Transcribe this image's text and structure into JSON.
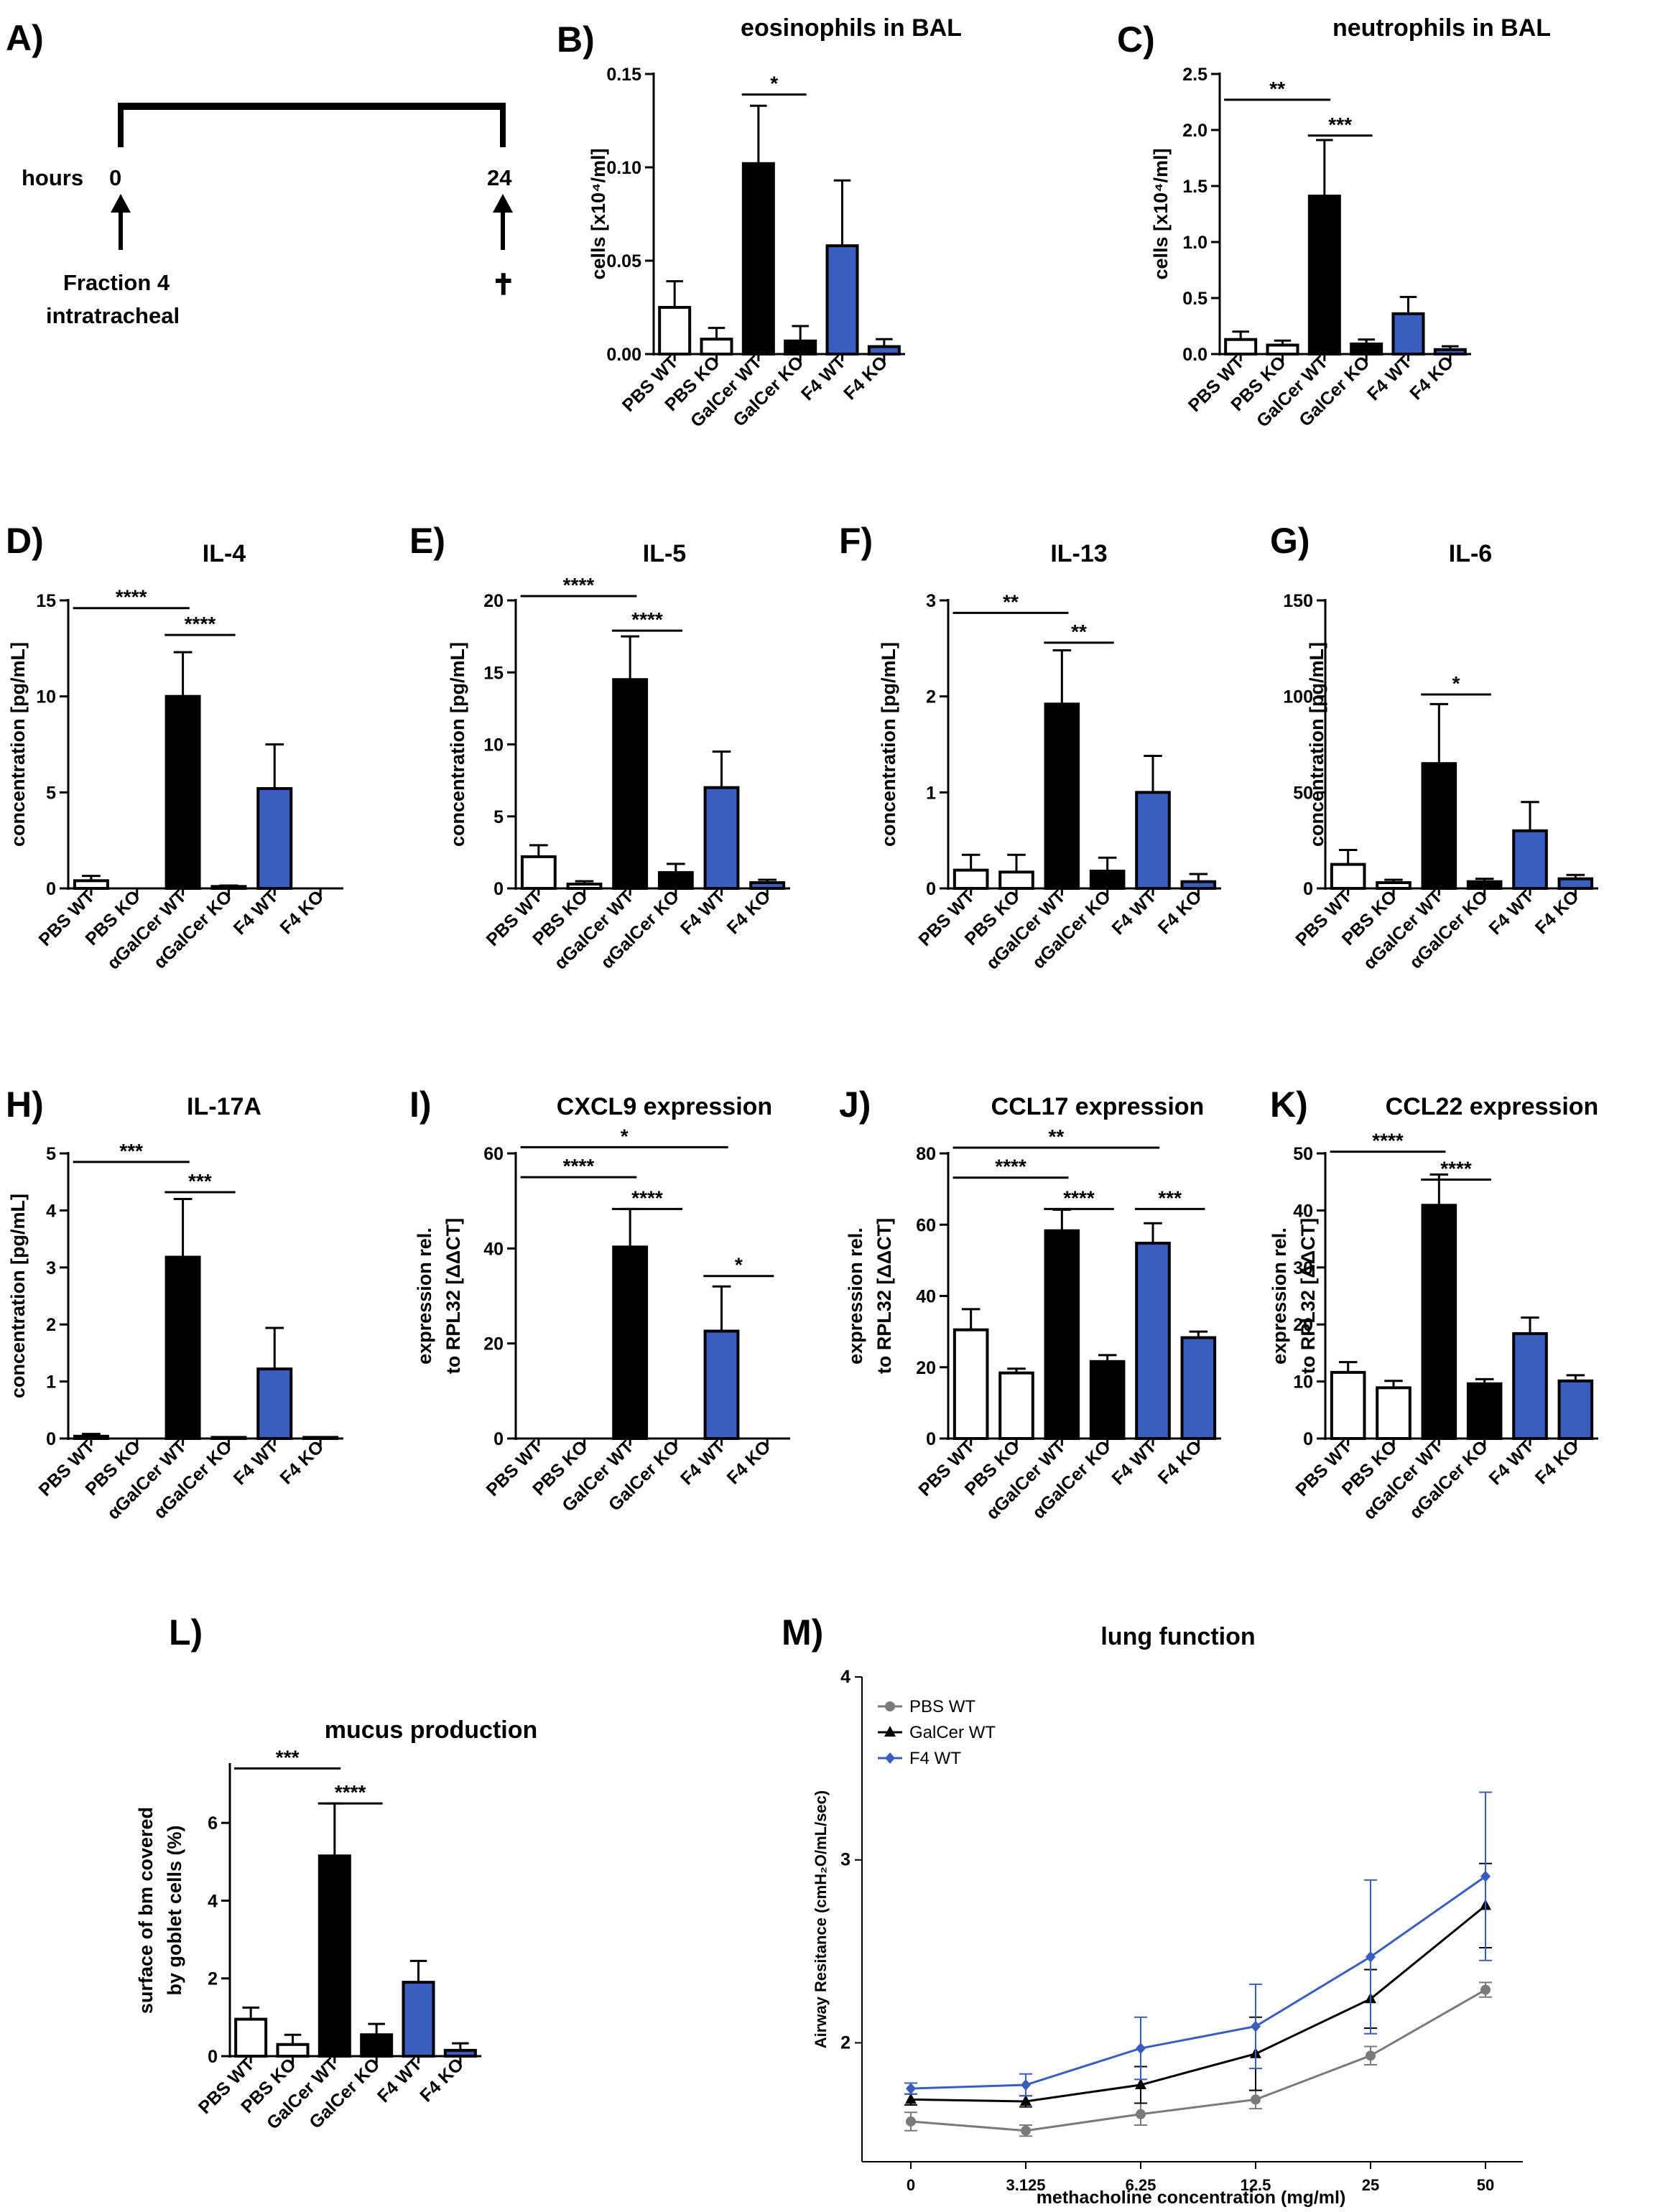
{
  "colors": {
    "wt_black": "#000000",
    "f4_blue": "#3a5ebd",
    "pbs_gray": "#7a7a7a"
  },
  "timeline": {
    "label": "A)",
    "hours_label": "hours",
    "start": "0",
    "end": "24",
    "treatment": [
      "Fraction 4",
      "intratracheal"
    ],
    "endpoint_symbol": "✝"
  },
  "chart_data": [
    {
      "id": "B",
      "label": "B)",
      "type": "bar",
      "title": "eosinophils in BAL",
      "ylabel": "cells [x10⁴/ml]",
      "yticks": [
        "0.00",
        "0.05",
        "0.10",
        "0.15"
      ],
      "ylim": [
        0,
        0.15
      ],
      "categories": [
        "PBS WT",
        "PBS KO",
        "GalCer WT",
        "GalCer KO",
        "F4 WT",
        "F4 KO"
      ],
      "values": [
        0.025,
        0.008,
        0.102,
        0.007,
        0.058,
        0.004
      ],
      "errors": [
        0.014,
        0.006,
        0.031,
        0.008,
        0.035,
        0.004
      ],
      "fills": [
        "white",
        "white",
        "black",
        "black",
        "blue",
        "blue"
      ],
      "significance": [
        {
          "from": 2,
          "to": 3,
          "label": "*",
          "y": 0.139
        }
      ]
    },
    {
      "id": "C",
      "label": "C)",
      "type": "bar",
      "title": "neutrophils in BAL",
      "ylabel": "cells [x10⁴/ml]",
      "yticks": [
        "0.0",
        "0.5",
        "1.0",
        "1.5",
        "2.0",
        "2.5"
      ],
      "ylim": [
        0,
        2.5
      ],
      "categories": [
        "PBS WT",
        "PBS KO",
        "GalCer WT",
        "GalCer KO",
        "F4 WT",
        "F4 KO"
      ],
      "values": [
        0.13,
        0.08,
        1.41,
        0.09,
        0.36,
        0.04
      ],
      "errors": [
        0.07,
        0.04,
        0.5,
        0.04,
        0.15,
        0.03
      ],
      "fills": [
        "white",
        "white",
        "black",
        "black",
        "blue",
        "blue"
      ],
      "significance": [
        {
          "from": 0,
          "to": 2,
          "label": "**",
          "y": 2.27
        },
        {
          "from": 2,
          "to": 3,
          "label": "***",
          "y": 1.95
        }
      ]
    },
    {
      "id": "D",
      "label": "D)",
      "type": "bar",
      "title": "IL-4",
      "ylabel": "concentration [pg/mL]",
      "yticks": [
        "0",
        "5",
        "10",
        "15"
      ],
      "ylim": [
        0,
        15
      ],
      "categories": [
        "PBS WT",
        "PBS KO",
        "αGalCer WT",
        "αGalCer KO",
        "F4 WT",
        "F4 KO"
      ],
      "values": [
        0.4,
        0.0,
        10.0,
        0.1,
        5.2,
        0.0
      ],
      "errors": [
        0.25,
        0.0,
        2.3,
        0.05,
        2.3,
        0.0
      ],
      "fills": [
        "white",
        "white",
        "black",
        "black",
        "blue",
        "blue"
      ],
      "significance": [
        {
          "from": 0,
          "to": 2,
          "label": "****",
          "y": 14.6
        },
        {
          "from": 2,
          "to": 3,
          "label": "****",
          "y": 13.2
        }
      ]
    },
    {
      "id": "E",
      "label": "E)",
      "type": "bar",
      "title": "IL-5",
      "ylabel": "concentration [pg/mL]",
      "yticks": [
        "0",
        "5",
        "10",
        "15",
        "20"
      ],
      "ylim": [
        0,
        20
      ],
      "categories": [
        "PBS WT",
        "PBS KO",
        "αGalCer WT",
        "αGalCer KO",
        "F4 WT",
        "F4 KO"
      ],
      "values": [
        2.2,
        0.3,
        14.5,
        1.1,
        7.0,
        0.4
      ],
      "errors": [
        0.8,
        0.2,
        3.0,
        0.6,
        2.5,
        0.2
      ],
      "fills": [
        "white",
        "white",
        "black",
        "black",
        "blue",
        "blue"
      ],
      "significance": [
        {
          "from": 0,
          "to": 2,
          "label": "****",
          "y": 20.3
        },
        {
          "from": 2,
          "to": 3,
          "label": "****",
          "y": 17.9
        }
      ]
    },
    {
      "id": "F",
      "label": "F)",
      "type": "bar",
      "title": "IL-13",
      "ylabel": "concentration [pg/mL]",
      "yticks": [
        "0",
        "1",
        "2",
        "3"
      ],
      "ylim": [
        0,
        3
      ],
      "categories": [
        "PBS WT",
        "PBS KO",
        "αGalCer WT",
        "αGalCer KO",
        "F4 WT",
        "F4 KO"
      ],
      "values": [
        0.19,
        0.17,
        1.92,
        0.18,
        1.0,
        0.07
      ],
      "errors": [
        0.16,
        0.18,
        0.56,
        0.14,
        0.38,
        0.08
      ],
      "fills": [
        "white",
        "white",
        "black",
        "black",
        "blue",
        "blue"
      ],
      "significance": [
        {
          "from": 0,
          "to": 2,
          "label": "**",
          "y": 2.87
        },
        {
          "from": 2,
          "to": 3,
          "label": "**",
          "y": 2.56
        }
      ]
    },
    {
      "id": "G",
      "label": "G)",
      "type": "bar",
      "title": "IL-6",
      "ylabel": "concentration [pg/mL]",
      "yticks": [
        "0",
        "50",
        "100",
        "150"
      ],
      "ylim": [
        0,
        150
      ],
      "categories": [
        "PBS WT",
        "PBS KO",
        "αGalCer WT",
        "αGalCer KO",
        "F4 WT",
        "F4 KO"
      ],
      "values": [
        12.5,
        3.0,
        65.0,
        3.5,
        30.0,
        5.0
      ],
      "errors": [
        7.5,
        1.5,
        31.0,
        1.5,
        15.0,
        2.0
      ],
      "fills": [
        "white",
        "white",
        "black",
        "black",
        "blue",
        "blue"
      ],
      "significance": [
        {
          "from": 2,
          "to": 3,
          "label": "*",
          "y": 101
        }
      ]
    },
    {
      "id": "H",
      "label": "H)",
      "type": "bar",
      "title": "IL-17A",
      "ylabel": "concentration [pg/mL]",
      "yticks": [
        "0",
        "1",
        "2",
        "3",
        "4",
        "5"
      ],
      "ylim": [
        0,
        5
      ],
      "categories": [
        "PBS WT",
        "PBS KO",
        "αGalCer WT",
        "αGalCer KO",
        "F4 WT",
        "F4 KO"
      ],
      "values": [
        0.04,
        0.0,
        3.18,
        0.02,
        1.22,
        0.02
      ],
      "errors": [
        0.04,
        0.0,
        1.02,
        0.0,
        0.72,
        0.0
      ],
      "fills": [
        "white",
        "white",
        "black",
        "black",
        "blue",
        "blue"
      ],
      "significance": [
        {
          "from": 0,
          "to": 2,
          "label": "***",
          "y": 4.85
        },
        {
          "from": 2,
          "to": 3,
          "label": "***",
          "y": 4.32
        }
      ]
    },
    {
      "id": "I",
      "label": "I)",
      "type": "bar",
      "title": "CXCL9 expression",
      "ylabel": [
        "expression rel.",
        "to RPL32 [ΔΔCT]"
      ],
      "yticks": [
        "0",
        "20",
        "40",
        "60"
      ],
      "ylim": [
        0,
        60
      ],
      "categories": [
        "PBS WT",
        "PBS KO",
        "GalCer WT",
        "GalCer KO",
        "F4 WT",
        "F4 KO"
      ],
      "values": [
        0.0,
        0.0,
        40.3,
        0.0,
        22.6,
        0.0
      ],
      "errors": [
        0.0,
        0.0,
        8.0,
        0.0,
        9.4,
        0.0
      ],
      "fills": [
        "white",
        "white",
        "black",
        "black",
        "blue",
        "blue"
      ],
      "significance": [
        {
          "from": 0,
          "to": 4,
          "label": "*",
          "y": 61.3
        },
        {
          "from": 0,
          "to": 2,
          "label": "****",
          "y": 55.0
        },
        {
          "from": 2,
          "to": 3,
          "label": "****",
          "y": 48.3
        },
        {
          "from": 4,
          "to": 5,
          "label": "*",
          "y": 34.2
        }
      ]
    },
    {
      "id": "J",
      "label": "J)",
      "type": "bar",
      "title": "CCL17 expression",
      "ylabel": [
        "expression rel.",
        "to RPL32 [ΔΔCT]"
      ],
      "yticks": [
        "0",
        "20",
        "40",
        "60",
        "80"
      ],
      "ylim": [
        0,
        80
      ],
      "categories": [
        "PBS WT",
        "PBS KO",
        "αGalCer WT",
        "αGalCer KO",
        "F4 WT",
        "F4 KO"
      ],
      "values": [
        30.5,
        18.4,
        58.3,
        21.6,
        54.8,
        28.3
      ],
      "errors": [
        5.8,
        1.2,
        5.9,
        1.8,
        5.6,
        1.7
      ],
      "fills": [
        "white",
        "white",
        "black",
        "black",
        "blue",
        "blue"
      ],
      "significance": [
        {
          "from": 0,
          "to": 4,
          "label": "**",
          "y": 81.6
        },
        {
          "from": 0,
          "to": 2,
          "label": "****",
          "y": 73.2
        },
        {
          "from": 2,
          "to": 3,
          "label": "****",
          "y": 64.4
        },
        {
          "from": 4,
          "to": 5,
          "label": "***",
          "y": 64.4
        }
      ]
    },
    {
      "id": "K",
      "label": "K)",
      "type": "bar",
      "title": "CCL22 expression",
      "ylabel": [
        "expression rel.",
        "to RPL32 [ΔΔCT]"
      ],
      "yticks": [
        "0",
        "10",
        "20",
        "30",
        "40",
        "50"
      ],
      "ylim": [
        0,
        50
      ],
      "categories": [
        "PBS WT",
        "PBS KO",
        "αGalCer WT",
        "αGalCer KO",
        "F4 WT",
        "F4 KO"
      ],
      "values": [
        11.6,
        8.9,
        40.9,
        9.6,
        18.4,
        10.1
      ],
      "errors": [
        1.8,
        1.2,
        5.4,
        0.8,
        2.8,
        1.0
      ],
      "fills": [
        "white",
        "white",
        "black",
        "black",
        "blue",
        "blue"
      ],
      "significance": [
        {
          "from": 0,
          "to": 2,
          "label": "****",
          "y": 50.3
        },
        {
          "from": 2,
          "to": 3,
          "label": "****",
          "y": 45.4
        }
      ]
    },
    {
      "id": "L",
      "label": "L)",
      "type": "bar",
      "title": "mucus production",
      "ylabel": [
        "surface of bm covered",
        "by goblet cells (%)"
      ],
      "yticks": [
        "0",
        "2",
        "4",
        "6"
      ],
      "ylim": [
        0,
        7.5
      ],
      "categories": [
        "PBS WT",
        "PBS KO",
        "GalCer WT",
        "GalCer KO",
        "F4 WT",
        "F4 KO"
      ],
      "values": [
        0.95,
        0.3,
        5.15,
        0.55,
        1.9,
        0.15
      ],
      "errors": [
        0.3,
        0.25,
        1.35,
        0.28,
        0.55,
        0.18
      ],
      "fills": [
        "white",
        "white",
        "black",
        "black",
        "blue",
        "blue"
      ],
      "significance": [
        {
          "from": 0,
          "to": 2,
          "label": "***",
          "y": 7.4
        },
        {
          "from": 2,
          "to": 3,
          "label": "****",
          "y": 6.5
        }
      ]
    },
    {
      "id": "M",
      "label": "M)",
      "type": "line",
      "title": "lung function",
      "xlabel": "methacholine concentration (mg/ml)",
      "ylabel": "Airway Resitance (cmH₂O/mL/sec)",
      "x": [
        "0",
        "3.125",
        "6.25",
        "12.5",
        "25",
        "50"
      ],
      "yticks": [
        "2",
        "3",
        "4"
      ],
      "ylim": [
        1.35,
        4.0
      ],
      "series": [
        {
          "name": "PBS WT",
          "color": "#7a7a7a",
          "marker": "circle",
          "values": [
            1.57,
            1.52,
            1.61,
            1.69,
            1.93,
            2.29
          ],
          "errors": [
            0.05,
            0.03,
            0.06,
            0.05,
            0.05,
            0.04
          ]
        },
        {
          "name": "GalCer WT",
          "color": "#000000",
          "marker": "triangle",
          "values": [
            1.69,
            1.68,
            1.77,
            1.94,
            2.24,
            2.75
          ],
          "errors": [
            0.03,
            0.03,
            0.1,
            0.2,
            0.16,
            0.23
          ]
        },
        {
          "name": "F4 WT",
          "color": "#3a5ebd",
          "marker": "diamond",
          "values": [
            1.75,
            1.77,
            1.97,
            2.09,
            2.47,
            2.91
          ],
          "errors": [
            0.03,
            0.06,
            0.17,
            0.23,
            0.42,
            0.46
          ]
        }
      ]
    }
  ]
}
